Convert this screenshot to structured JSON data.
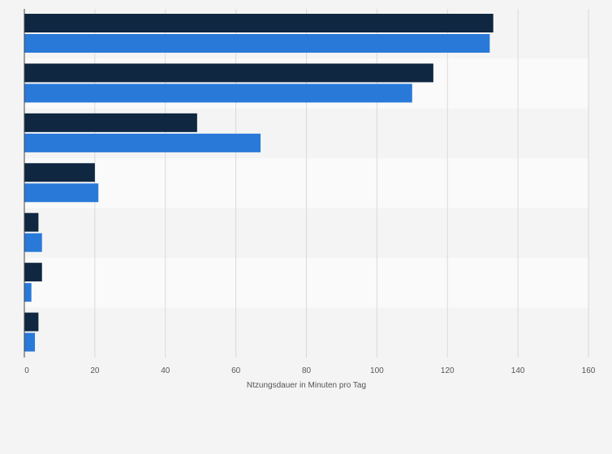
{
  "chart_data": {
    "type": "bar",
    "orientation": "horizontal",
    "categories": [
      "",
      "",
      "",
      "",
      "",
      "",
      ""
    ],
    "series": [
      {
        "color": "#0f2741",
        "values": [
          133,
          116,
          49,
          20,
          4,
          5,
          4
        ]
      },
      {
        "color": "#2979d9",
        "values": [
          132,
          110,
          67,
          21,
          5,
          2,
          3
        ]
      }
    ],
    "xlabel": "Ntzungsdauer in Minuten pro Tag",
    "xlim": [
      0,
      160
    ],
    "xticks": [
      0,
      20,
      40,
      60,
      80,
      100,
      120,
      140,
      160
    ],
    "grid": true,
    "legend": "none"
  }
}
